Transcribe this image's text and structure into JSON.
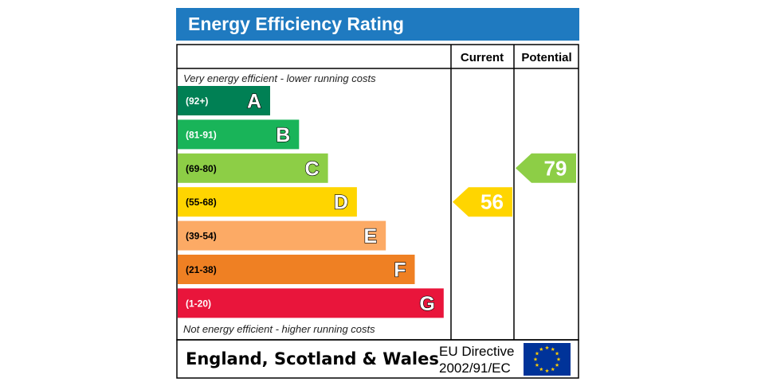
{
  "title": "Energy Efficiency Rating",
  "columns": {
    "current": "Current",
    "potential": "Potential"
  },
  "top_note": "Very energy efficient - lower running costs",
  "bottom_note": "Not energy efficient - higher running costs",
  "chart_data": {
    "type": "bar",
    "bands": [
      {
        "letter": "A",
        "range": "(92+)",
        "color": "#008054"
      },
      {
        "letter": "B",
        "range": "(81-91)",
        "color": "#19b459"
      },
      {
        "letter": "C",
        "range": "(69-80)",
        "color": "#8dce46"
      },
      {
        "letter": "D",
        "range": "(55-68)",
        "color": "#ffd500"
      },
      {
        "letter": "E",
        "range": "(39-54)",
        "color": "#fcaa65"
      },
      {
        "letter": "F",
        "range": "(21-38)",
        "color": "#ef8023"
      },
      {
        "letter": "G",
        "range": "(1-20)",
        "color": "#e9153b"
      }
    ],
    "current": {
      "value": 56,
      "band": "D",
      "color": "#ffd500"
    },
    "potential": {
      "value": 79,
      "band": "C",
      "color": "#8dce46"
    }
  },
  "footer": {
    "region": "England, Scotland & Wales",
    "directive_line1": "EU Directive",
    "directive_line2": "2002/91/EC"
  },
  "colors": {
    "title_bar": "#1f7ac0",
    "eu_flag": "#003399",
    "eu_star": "#ffcc00"
  }
}
